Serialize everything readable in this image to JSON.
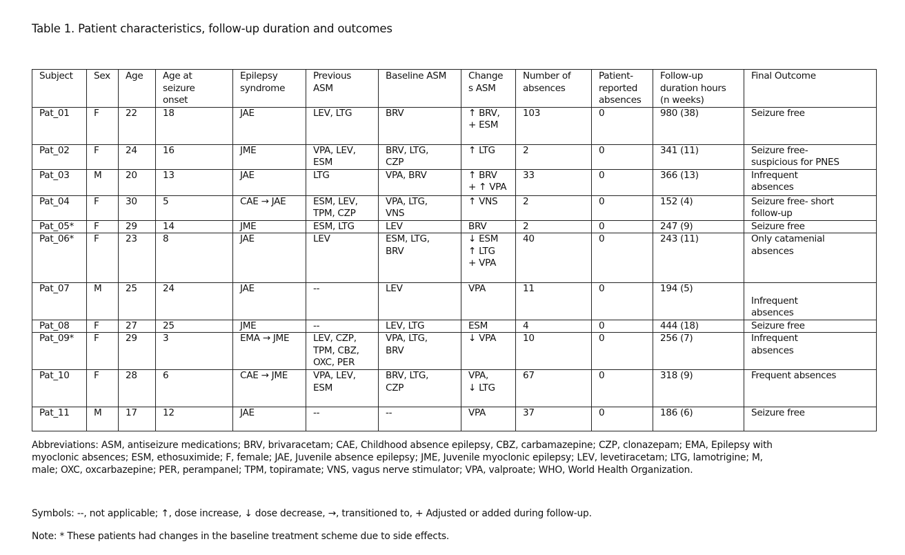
{
  "title": "Table 1. Patient characteristics, follow-up duration and outcomes",
  "table": {
    "headers": [
      "Subject",
      "Sex",
      "Age",
      "Age at\nseizure\nonset",
      "Epilepsy\nsyndrome",
      "Previous\nASM",
      "Baseline ASM",
      "Change\ns ASM",
      "Number of\nabsences",
      "Patient-\nreported\nabsences",
      "Follow-up\nduration hours\n(n weeks)",
      "Final Outcome"
    ],
    "rows": [
      [
        "Pat_01",
        "F",
        "22",
        "18",
        "JAE",
        "LEV, LTG",
        "BRV",
        "↑ BRV,\n+ ESM",
        "103",
        "0",
        "980  (38)",
        "Seizure free"
      ],
      [
        "Pat_02",
        "F",
        "24",
        "16",
        "JME",
        "VPA, LEV,\nESM",
        "BRV, LTG,\nCZP",
        "↑ LTG",
        "2",
        "0",
        "341 (11)",
        "Seizure free-\nsuspicious for PNES"
      ],
      [
        "Pat_03",
        "M",
        "20",
        "13",
        "JAE",
        "LTG",
        "VPA, BRV",
        "↑ BRV\n+ ↑ VPA",
        "33",
        "0",
        "366 (13)",
        "Infrequent\nabsences"
      ],
      [
        "Pat_04",
        "F",
        "30",
        "5",
        "CAE → JAE",
        "ESM, LEV,\nTPM, CZP",
        "VPA, LTG,\nVNS",
        "↑ VNS",
        "2",
        "0",
        "152 (4)",
        "Seizure free- short\nfollow-up"
      ],
      [
        "Pat_05*",
        "F",
        "29",
        "14",
        "JME",
        "ESM, LTG",
        "LEV",
        "BRV",
        "2",
        "0",
        "247 (9)",
        "Seizure free"
      ],
      [
        "Pat_06*",
        "F",
        "23",
        "8",
        "JAE",
        "LEV",
        "ESM, LTG,\nBRV",
        "↓ ESM\n↑ LTG\n+ VPA",
        "40",
        "0",
        "243 (11)",
        "Only catamenial\nabsences"
      ],
      [
        "Pat_07",
        "M",
        "25",
        "24",
        "JAE",
        "--",
        "LEV",
        "VPA",
        "11",
        "0",
        "194 (5)",
        "\nInfrequent\nabsences"
      ],
      [
        "Pat_08",
        "F",
        "27",
        "25",
        "JME",
        "--",
        "LEV, LTG",
        "ESM",
        "4",
        "0",
        "444 (18)",
        "Seizure free"
      ],
      [
        "Pat_09*",
        "F",
        "29",
        "3",
        "EMA → JME",
        "LEV, CZP,\nTPM, CBZ,\nOXC, PER",
        "VPA, LTG,\nBRV",
        "↓ VPA",
        "10",
        "0",
        "256 (7)",
        "Infrequent\nabsences"
      ],
      [
        "Pat_10",
        "F",
        "28",
        "6",
        "CAE → JME",
        "VPA, LEV,\nESM",
        "BRV, LTG,\nCZP",
        "VPA,\n↓ LTG",
        "67",
        "0",
        "318 (9)",
        "Frequent absences"
      ],
      [
        "Pat_11",
        "M",
        "17",
        "12",
        "JAE",
        "--",
        "--",
        "VPA",
        "37",
        "0",
        "186 (6)",
        "Seizure free"
      ]
    ]
  },
  "abbreviations": "Abbreviations: ASM, antiseizure medications; BRV, brivaracetam; CAE, Childhood absence epilepsy, CBZ, carbamazepine; CZP, clonazepam; EMA, Epilepsy with myoclonic absences; ESM, ethosuximide; F, female; JAE, Juvenile absence epilepsy; JME, Juvenile myoclonic epilepsy; LEV, levetiracetam; LTG, lamotrigine; M, male; OXC, oxcarbazepine; PER, perampanel; TPM, topiramate; VNS, vagus nerve stimulator; VPA, valproate; WHO, World Health Organization.",
  "symbols": "Symbols: --, not applicable; ↑, dose increase, ↓ dose decrease,  →, transitioned to, + Adjusted or added during follow-up.",
  "note": "Note: * These patients had changes in the baseline treatment scheme due to side effects."
}
